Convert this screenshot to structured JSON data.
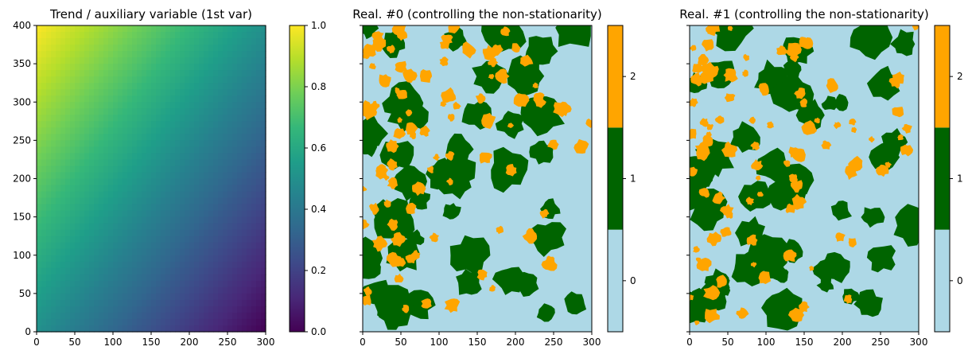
{
  "chart_data": [
    {
      "type": "heatmap",
      "title": "Trend / auxiliary variable (1st var)",
      "xlim": [
        0,
        300
      ],
      "ylim": [
        0,
        400
      ],
      "xticks": [
        0,
        50,
        100,
        150,
        200,
        250,
        300
      ],
      "yticks": [
        0,
        50,
        100,
        150,
        200,
        250,
        300,
        350,
        400
      ],
      "colormap": "viridis",
      "field": "value ≈ 0.5 + (y/400 - x/300)/2 ; 1.0 at top-left (0,400), 0.0 at bottom-right (300,0)",
      "corner_values": {
        "top_left": 1.0,
        "top_right": 0.5,
        "bottom_left": 0.5,
        "bottom_right": 0.0
      },
      "colorbar": {
        "range": [
          0.0,
          1.0
        ],
        "ticks": [
          "0.0",
          "0.2",
          "0.4",
          "0.6",
          "0.8",
          "1.0"
        ]
      }
    },
    {
      "type": "heatmap",
      "title": "Real. #0 (controlling the non-stationarity)",
      "xlim": [
        0,
        300
      ],
      "ylim": [
        0,
        400
      ],
      "xticks": [
        0,
        50,
        100,
        150,
        200,
        250,
        300
      ],
      "yticks": [
        0,
        50,
        100,
        150,
        200,
        250,
        300,
        350,
        400
      ],
      "categories": [
        0,
        1,
        2
      ],
      "category_colors": [
        "#add8e6",
        "#006400",
        "#ffa500"
      ],
      "colorbar": {
        "ticks": [
          "0",
          "1",
          "2"
        ]
      },
      "seed": 7
    },
    {
      "type": "heatmap",
      "title": "Real. #1 (controlling the non-stationarity)",
      "xlim": [
        0,
        300
      ],
      "ylim": [
        0,
        400
      ],
      "xticks": [
        0,
        50,
        100,
        150,
        200,
        250,
        300
      ],
      "yticks": [
        0,
        50,
        100,
        150,
        200,
        250,
        300,
        350,
        400
      ],
      "categories": [
        0,
        1,
        2
      ],
      "category_colors": [
        "#add8e6",
        "#006400",
        "#ffa500"
      ],
      "colorbar": {
        "ticks": [
          "0",
          "1",
          "2"
        ]
      },
      "seed": 23
    }
  ],
  "colors": {
    "viridis": [
      "#440154",
      "#482878",
      "#3e4989",
      "#31688e",
      "#26828e",
      "#1f9e89",
      "#35b779",
      "#6ece58",
      "#b5de2b",
      "#fde725"
    ]
  }
}
